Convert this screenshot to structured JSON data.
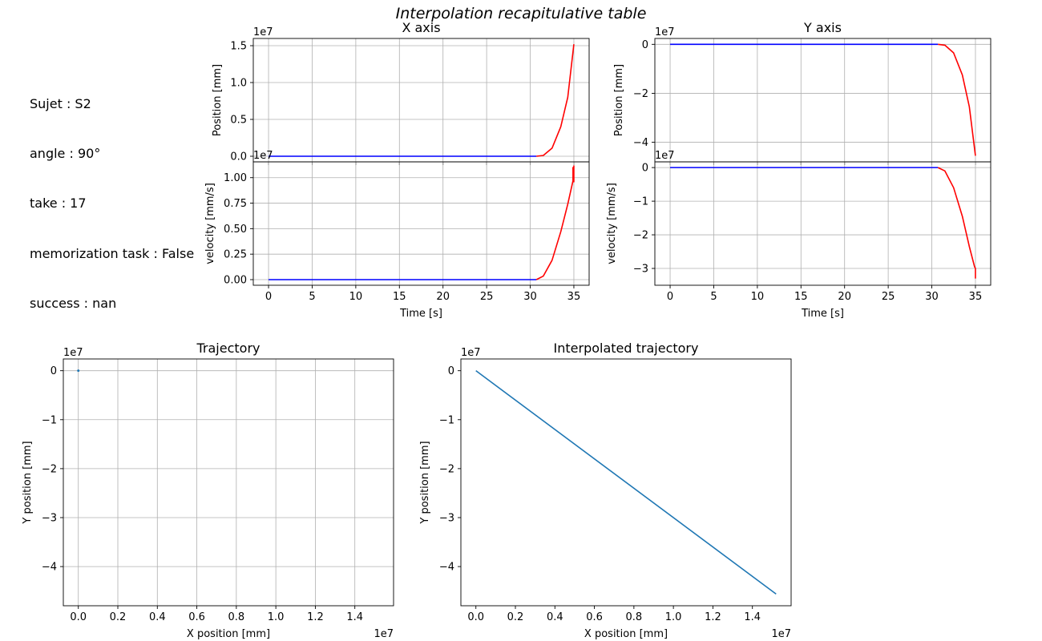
{
  "figure_title": "Interpolation recapitulative table",
  "info": {
    "lines": [
      "Sujet : S2",
      "angle : 90°",
      "take : 17",
      "memorization task : False",
      "success : nan"
    ]
  },
  "chart_data": [
    {
      "id": "x_position",
      "type": "line",
      "title": "X axis",
      "xlabel": "",
      "ylabel": "Position [mm]",
      "offset_label": "1e7",
      "xlim": [
        -1.75,
        36.75
      ],
      "ylim": [
        -0.076,
        1.598
      ],
      "xticks": [
        0,
        5,
        10,
        15,
        20,
        25,
        30,
        35
      ],
      "xticklabels": [],
      "yticks": [
        0,
        0.5,
        1.0,
        1.5
      ],
      "yticklabels": [
        "0.0",
        "0.5",
        "1.0",
        "1.5"
      ],
      "grid": true,
      "series": [
        {
          "color": "#0000ff",
          "x": [
            0,
            30.7
          ],
          "y": [
            0,
            0
          ]
        },
        {
          "color": "#ff0000",
          "x": [
            30.7,
            31.5,
            32.5,
            33.5,
            34.3,
            35.0
          ],
          "y": [
            0,
            0.011,
            0.11,
            0.4,
            0.8,
            1.52
          ]
        }
      ]
    },
    {
      "id": "x_velocity",
      "type": "line",
      "title": "",
      "xlabel": "Time [s]",
      "ylabel": "velocity [mm/s]",
      "offset_label": "1e7",
      "xlim": [
        -1.75,
        36.75
      ],
      "ylim": [
        -0.055,
        1.155
      ],
      "xticks": [
        0,
        5,
        10,
        15,
        20,
        25,
        30,
        35
      ],
      "xticklabels": [
        "0",
        "5",
        "10",
        "15",
        "20",
        "25",
        "30",
        "35"
      ],
      "yticks": [
        0,
        0.25,
        0.5,
        0.75,
        1.0
      ],
      "yticklabels": [
        "0.00",
        "0.25",
        "0.50",
        "0.75",
        "1.00"
      ],
      "grid": true,
      "series": [
        {
          "color": "#0000ff",
          "x": [
            0,
            30.7
          ],
          "y": [
            0,
            0
          ]
        },
        {
          "color": "#ff0000",
          "x": [
            30.7,
            31.5,
            32.5,
            33.5,
            34.3,
            34.9,
            34.9,
            35.0,
            35.0
          ],
          "y": [
            0,
            0.035,
            0.19,
            0.47,
            0.74,
            0.97,
            1.1,
            0.96,
            1.12
          ]
        }
      ]
    },
    {
      "id": "y_position",
      "type": "line",
      "title": "Y axis",
      "xlabel": "",
      "ylabel": "Position [mm]",
      "offset_label": "1e7",
      "xlim": [
        -1.75,
        36.75
      ],
      "ylim": [
        -4.8,
        0.24
      ],
      "xticks": [
        0,
        5,
        10,
        15,
        20,
        25,
        30,
        35
      ],
      "xticklabels": [],
      "yticks": [
        0,
        -2,
        -4
      ],
      "yticklabels": [
        "0",
        "−2",
        "−4"
      ],
      "grid": true,
      "series": [
        {
          "color": "#0000ff",
          "x": [
            0,
            30.7
          ],
          "y": [
            0,
            0
          ]
        },
        {
          "color": "#ff0000",
          "x": [
            30.7,
            31.5,
            32.5,
            33.5,
            34.3,
            35.0
          ],
          "y": [
            0,
            -0.035,
            -0.35,
            -1.25,
            -2.55,
            -4.55
          ]
        }
      ]
    },
    {
      "id": "y_velocity",
      "type": "line",
      "title": "",
      "xlabel": "Time [s]",
      "ylabel": "velocity [mm/s]",
      "offset_label": "1e7",
      "xlim": [
        -1.75,
        36.75
      ],
      "ylim": [
        -3.5,
        0.17
      ],
      "xticks": [
        0,
        5,
        10,
        15,
        20,
        25,
        30,
        35
      ],
      "xticklabels": [
        "0",
        "5",
        "10",
        "15",
        "20",
        "25",
        "30",
        "35"
      ],
      "yticks": [
        0,
        -1,
        -2,
        -3
      ],
      "yticklabels": [
        "0",
        "−1",
        "−2",
        "−3"
      ],
      "grid": true,
      "series": [
        {
          "color": "#0000ff",
          "x": [
            0,
            30.7
          ],
          "y": [
            0,
            0
          ]
        },
        {
          "color": "#ff0000",
          "x": [
            30.7,
            31.5,
            32.5,
            33.5,
            34.3,
            34.9,
            35.0,
            35.0
          ],
          "y": [
            0,
            -0.1,
            -0.6,
            -1.45,
            -2.35,
            -2.95,
            -3.0,
            -3.3
          ]
        }
      ]
    },
    {
      "id": "trajectory",
      "type": "scatter",
      "title": "Trajectory",
      "xlabel": "X position [mm]",
      "ylabel": "Y position [mm]",
      "offset_label_x": "1e7",
      "offset_label_y": "1e7",
      "xlim": [
        -0.076,
        1.596
      ],
      "ylim": [
        -4.8,
        0.24
      ],
      "xticks": [
        0,
        0.2,
        0.4,
        0.6,
        0.8,
        1.0,
        1.2,
        1.4
      ],
      "xticklabels": [
        "0.0",
        "0.2",
        "0.4",
        "0.6",
        "0.8",
        "1.0",
        "1.2",
        "1.4"
      ],
      "yticks": [
        0,
        -1,
        -2,
        -3,
        -4
      ],
      "yticklabels": [
        "0",
        "−1",
        "−2",
        "−3",
        "−4"
      ],
      "grid": true,
      "series": [
        {
          "color": "#1f77b4",
          "x": [
            0
          ],
          "y": [
            0
          ]
        }
      ]
    },
    {
      "id": "interpolated_trajectory",
      "type": "line",
      "title": "Interpolated trajectory",
      "xlabel": "X position [mm]",
      "ylabel": "Y position [mm]",
      "offset_label_x": "1e7",
      "offset_label_y": "1e7",
      "xlim": [
        -0.076,
        1.596
      ],
      "ylim": [
        -4.8,
        0.24
      ],
      "xticks": [
        0,
        0.2,
        0.4,
        0.6,
        0.8,
        1.0,
        1.2,
        1.4
      ],
      "xticklabels": [
        "0.0",
        "0.2",
        "0.4",
        "0.6",
        "0.8",
        "1.0",
        "1.2",
        "1.4"
      ],
      "yticks": [
        0,
        -1,
        -2,
        -3,
        -4
      ],
      "yticklabels": [
        "0",
        "−1",
        "−2",
        "−3",
        "−4"
      ],
      "grid": false,
      "series": [
        {
          "color": "#1f77b4",
          "x": [
            0,
            1.52
          ],
          "y": [
            0,
            -4.56
          ]
        }
      ]
    }
  ]
}
